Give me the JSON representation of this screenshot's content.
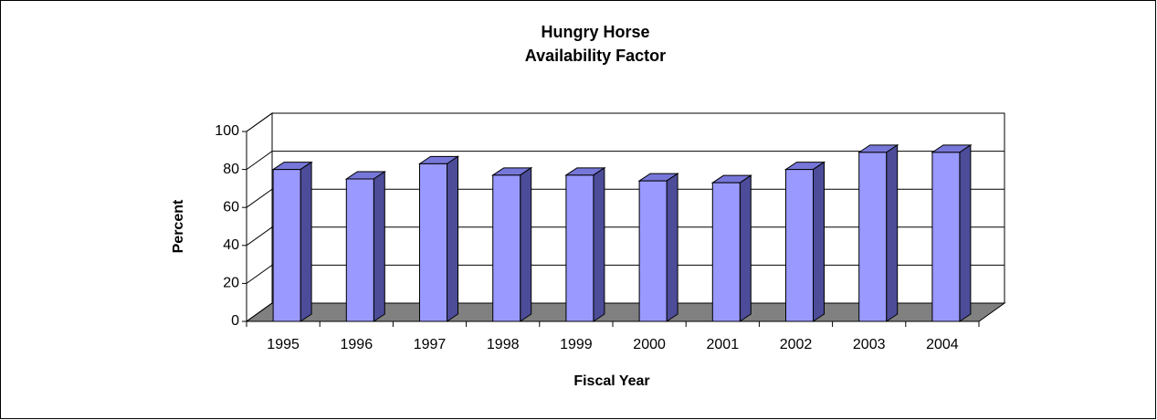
{
  "chart_data": {
    "type": "bar3d",
    "title": [
      "Hungry Horse",
      "Availability Factor"
    ],
    "y_label": "Percent",
    "x_label": "Fiscal Year",
    "categories": [
      "1995",
      "1996",
      "1997",
      "1998",
      "1999",
      "2000",
      "2001",
      "2002",
      "2003",
      "2004"
    ],
    "values": [
      80,
      75,
      83,
      77,
      77,
      74,
      73,
      80,
      89,
      89
    ],
    "color": "#9999ff",
    "ylim": [
      0,
      100
    ],
    "yticks": [
      0,
      20,
      40,
      60,
      80,
      100
    ],
    "grid": true
  }
}
